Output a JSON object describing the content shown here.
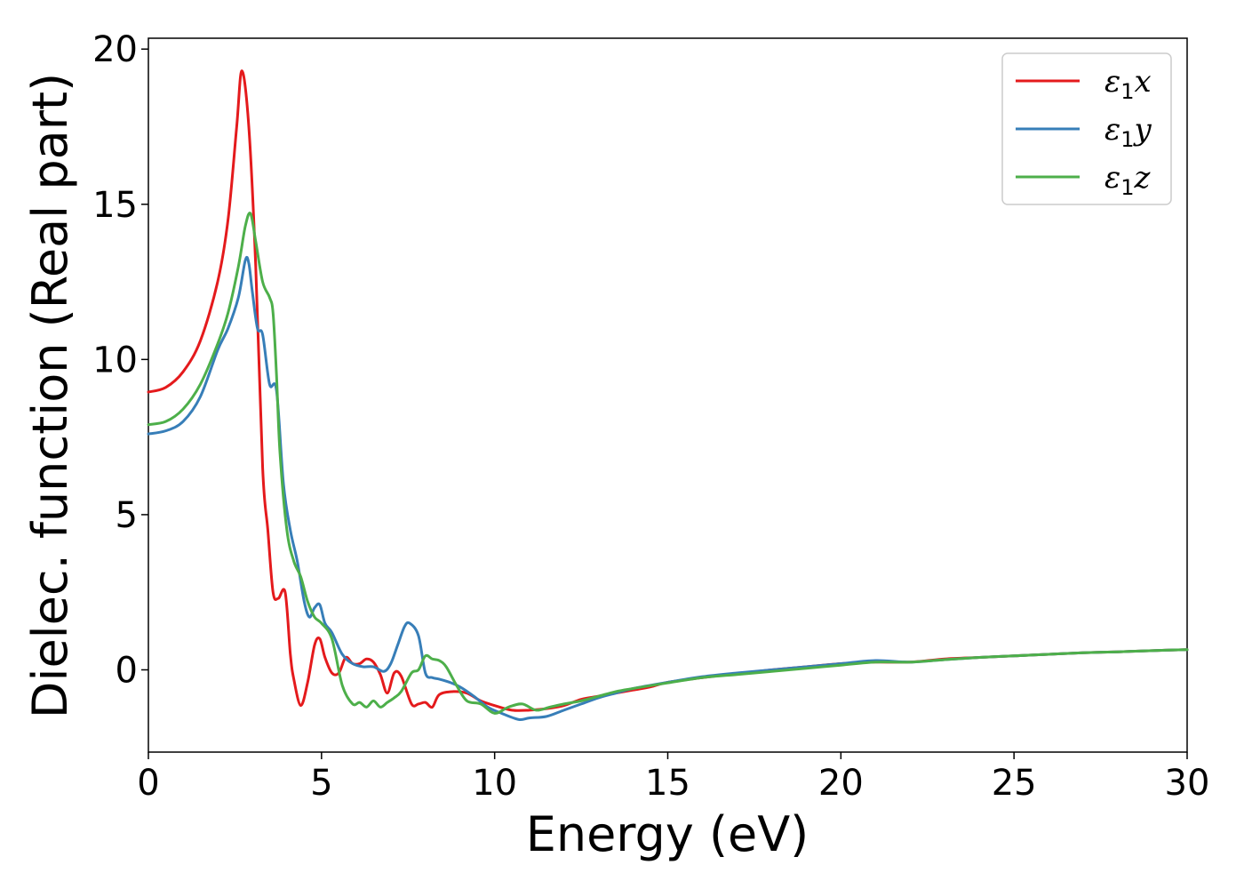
{
  "chart_data": {
    "type": "line",
    "title": "",
    "xlabel": "Energy (eV)",
    "ylabel": "Dielec. function (Real part)",
    "xlim": [
      0,
      30
    ],
    "ylim": [
      -2.65,
      20.35
    ],
    "xticks": [
      0,
      5,
      10,
      15,
      20,
      25,
      30
    ],
    "yticks": [
      0,
      5,
      10,
      15,
      20
    ],
    "grid": false,
    "legend_position": "top-right",
    "series": [
      {
        "name": "ε1x",
        "legend": {
          "base": "ε",
          "sub": "1",
          "axis": "x"
        },
        "color": "#e41a1c",
        "x": [
          0,
          0.5,
          1.0,
          1.5,
          2.0,
          2.3,
          2.55,
          2.7,
          2.9,
          3.1,
          3.3,
          3.45,
          3.6,
          3.75,
          3.95,
          4.1,
          4.2,
          4.4,
          4.6,
          4.8,
          4.95,
          5.1,
          5.3,
          5.5,
          5.7,
          5.9,
          6.1,
          6.3,
          6.5,
          6.7,
          6.9,
          7.1,
          7.3,
          7.6,
          7.8,
          8.0,
          8.2,
          8.4,
          8.8,
          9.2,
          9.6,
          10.0,
          10.5,
          11.0,
          11.5,
          12.0,
          12.5,
          13.0,
          13.5,
          14.0,
          14.5,
          15.0,
          16.0,
          17.0,
          18.0,
          19.0,
          20.0,
          21.0,
          22.0,
          23.0,
          24.0,
          25.0,
          26.0,
          27.0,
          28.0,
          29.0,
          30.0
        ],
        "y": [
          8.95,
          9.1,
          9.6,
          10.6,
          12.5,
          14.5,
          17.5,
          19.3,
          17.5,
          13.0,
          6.5,
          4.5,
          2.5,
          2.3,
          2.5,
          0.5,
          -0.3,
          -1.15,
          -0.4,
          0.8,
          1.0,
          0.4,
          -0.1,
          -0.1,
          0.4,
          0.2,
          0.2,
          0.35,
          0.25,
          -0.15,
          -0.75,
          -0.1,
          -0.2,
          -1.1,
          -1.1,
          -1.05,
          -1.2,
          -0.8,
          -0.7,
          -0.75,
          -1.0,
          -1.15,
          -1.3,
          -1.3,
          -1.25,
          -1.15,
          -0.95,
          -0.85,
          -0.75,
          -0.65,
          -0.55,
          -0.4,
          -0.25,
          -0.12,
          0.0,
          0.1,
          0.2,
          0.25,
          0.25,
          0.35,
          0.4,
          0.45,
          0.5,
          0.55,
          0.58,
          0.62,
          0.65
        ]
      },
      {
        "name": "ε1y",
        "legend": {
          "base": "ε",
          "sub": "1",
          "axis": "y"
        },
        "color": "#377eb8",
        "x": [
          0,
          0.5,
          1.0,
          1.5,
          2.0,
          2.3,
          2.6,
          2.8,
          2.9,
          3.0,
          3.15,
          3.3,
          3.5,
          3.7,
          3.9,
          4.1,
          4.3,
          4.5,
          4.65,
          4.8,
          4.95,
          5.1,
          5.3,
          5.6,
          5.9,
          6.2,
          6.5,
          6.8,
          7.0,
          7.2,
          7.4,
          7.55,
          7.8,
          8.0,
          8.2,
          8.4,
          8.7,
          9.0,
          9.4,
          9.8,
          10.2,
          10.7,
          11.0,
          11.5,
          12.0,
          12.5,
          13.0,
          13.5,
          14.0,
          15.0,
          16.0,
          17.0,
          18.0,
          19.0,
          20.0,
          21.0,
          22.0,
          23.0,
          24.0,
          25.0,
          26.0,
          27.0,
          28.0,
          29.0,
          30.0
        ],
        "y": [
          7.6,
          7.7,
          8.0,
          8.8,
          10.3,
          11.0,
          12.0,
          13.2,
          13.1,
          12.2,
          11.0,
          10.8,
          9.2,
          9.0,
          6.0,
          4.5,
          3.5,
          2.2,
          1.7,
          2.0,
          2.1,
          1.5,
          1.2,
          0.5,
          0.2,
          0.1,
          0.1,
          -0.05,
          0.2,
          0.8,
          1.4,
          1.5,
          1.1,
          -0.1,
          -0.25,
          -0.3,
          -0.4,
          -0.55,
          -0.85,
          -1.2,
          -1.4,
          -1.6,
          -1.55,
          -1.5,
          -1.3,
          -1.1,
          -0.9,
          -0.75,
          -0.6,
          -0.4,
          -0.22,
          -0.1,
          0.0,
          0.1,
          0.2,
          0.3,
          0.25,
          0.33,
          0.4,
          0.45,
          0.5,
          0.55,
          0.58,
          0.62,
          0.65
        ]
      },
      {
        "name": "ε1z",
        "legend": {
          "base": "ε",
          "sub": "1",
          "axis": "z"
        },
        "color": "#4daf4a",
        "x": [
          0,
          0.5,
          1.0,
          1.5,
          2.0,
          2.3,
          2.6,
          2.8,
          2.95,
          3.1,
          3.3,
          3.5,
          3.6,
          3.7,
          3.8,
          4.0,
          4.2,
          4.4,
          4.6,
          4.8,
          5.0,
          5.3,
          5.6,
          5.9,
          6.1,
          6.3,
          6.5,
          6.7,
          6.9,
          7.1,
          7.3,
          7.6,
          7.8,
          8.0,
          8.2,
          8.4,
          8.6,
          8.9,
          9.2,
          9.6,
          10.0,
          10.4,
          10.8,
          11.2,
          11.6,
          12.0,
          12.5,
          13.0,
          13.5,
          14.0,
          15.0,
          16.0,
          17.0,
          18.0,
          19.0,
          20.0,
          21.0,
          22.0,
          23.0,
          24.0,
          25.0,
          26.0,
          27.0,
          28.0,
          29.0,
          30.0
        ],
        "y": [
          7.9,
          8.0,
          8.4,
          9.2,
          10.5,
          11.5,
          13.0,
          14.3,
          14.7,
          13.8,
          12.5,
          12.0,
          11.5,
          9.5,
          7.0,
          4.5,
          3.5,
          3.0,
          2.2,
          1.7,
          1.5,
          1.0,
          -0.5,
          -1.1,
          -1.05,
          -1.2,
          -1.0,
          -1.2,
          -1.05,
          -0.9,
          -0.7,
          -0.1,
          0.0,
          0.45,
          0.35,
          0.3,
          0.1,
          -0.5,
          -1.0,
          -1.1,
          -1.4,
          -1.2,
          -1.1,
          -1.3,
          -1.2,
          -1.1,
          -1.0,
          -0.85,
          -0.7,
          -0.6,
          -0.42,
          -0.25,
          -0.15,
          -0.05,
          0.05,
          0.15,
          0.25,
          0.25,
          0.33,
          0.4,
          0.45,
          0.5,
          0.55,
          0.58,
          0.62,
          0.65
        ]
      }
    ]
  }
}
